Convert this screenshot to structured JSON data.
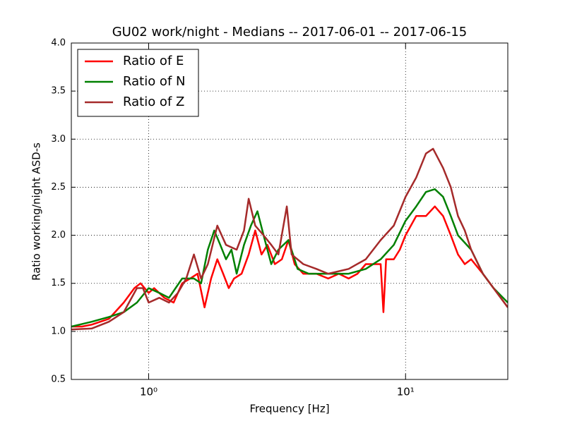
{
  "chart_data": {
    "type": "line",
    "title": "GU02 work/night - Medians -- 2017-06-01 -- 2017-06-15",
    "xlabel": "Frequency [Hz]",
    "ylabel": "Ratio working/night ASD-s",
    "xscale": "log",
    "xlim": [
      0.5,
      25
    ],
    "ylim": [
      0.5,
      4.0
    ],
    "xticks": [
      {
        "value": 1,
        "label": "10⁰"
      },
      {
        "value": 10,
        "label": "10¹"
      }
    ],
    "yticks": [
      0.5,
      {
        "value": 1.0,
        "label": "1.0"
      },
      1.5,
      {
        "value": 2.0,
        "label": "2.0"
      },
      2.5,
      {
        "value": 3.0,
        "label": "3.0"
      },
      3.5,
      {
        "value": 4.0,
        "label": "4.0"
      }
    ],
    "grid": true,
    "legend": "upper left",
    "series": [
      {
        "name": "Ratio of E",
        "color": "#ff0000",
        "x": [
          0.5,
          0.55,
          0.6,
          0.7,
          0.8,
          0.88,
          0.93,
          1.0,
          1.05,
          1.15,
          1.25,
          1.35,
          1.45,
          1.55,
          1.65,
          1.75,
          1.85,
          1.95,
          2.05,
          2.15,
          2.3,
          2.45,
          2.6,
          2.75,
          2.9,
          3.1,
          3.3,
          3.5,
          3.7,
          4.0,
          4.5,
          5,
          5.5,
          6,
          6.5,
          7,
          7.5,
          8,
          8.2,
          8.4,
          9,
          9.5,
          10,
          11,
          12,
          13,
          14,
          15,
          16,
          17,
          18,
          20,
          22,
          25
        ],
        "values": [
          1.05,
          1.05,
          1.07,
          1.13,
          1.3,
          1.45,
          1.5,
          1.4,
          1.45,
          1.35,
          1.3,
          1.5,
          1.55,
          1.6,
          1.25,
          1.55,
          1.75,
          1.6,
          1.45,
          1.55,
          1.6,
          1.8,
          2.05,
          1.8,
          1.9,
          1.7,
          1.75,
          1.95,
          1.7,
          1.6,
          1.6,
          1.55,
          1.6,
          1.55,
          1.6,
          1.7,
          1.7,
          1.7,
          1.2,
          1.75,
          1.75,
          1.85,
          2.0,
          2.2,
          2.2,
          2.3,
          2.2,
          2.0,
          1.8,
          1.7,
          1.75,
          1.6,
          1.45,
          1.25
        ]
      },
      {
        "name": "Ratio of N",
        "color": "#008000",
        "x": [
          0.5,
          0.6,
          0.7,
          0.8,
          0.9,
          1.0,
          1.1,
          1.2,
          1.35,
          1.5,
          1.6,
          1.7,
          1.8,
          1.9,
          2.0,
          2.1,
          2.2,
          2.35,
          2.5,
          2.65,
          2.8,
          3.0,
          3.2,
          3.5,
          3.8,
          4.2,
          5,
          6,
          7,
          8,
          9,
          10,
          11,
          12,
          13,
          14,
          15,
          16,
          18,
          20,
          22,
          25
        ],
        "values": [
          1.05,
          1.1,
          1.15,
          1.2,
          1.3,
          1.45,
          1.4,
          1.35,
          1.55,
          1.55,
          1.5,
          1.85,
          2.05,
          1.9,
          1.75,
          1.85,
          1.6,
          1.9,
          2.1,
          2.25,
          2.0,
          1.7,
          1.85,
          1.95,
          1.65,
          1.6,
          1.6,
          1.6,
          1.65,
          1.75,
          1.9,
          2.15,
          2.3,
          2.45,
          2.48,
          2.4,
          2.2,
          2.0,
          1.85,
          1.6,
          1.45,
          1.3
        ]
      },
      {
        "name": "Ratio of Z",
        "color": "#a52a2a",
        "x": [
          0.5,
          0.6,
          0.7,
          0.8,
          0.9,
          0.95,
          1.0,
          1.1,
          1.2,
          1.3,
          1.4,
          1.5,
          1.6,
          1.7,
          1.85,
          2.0,
          2.2,
          2.35,
          2.45,
          2.6,
          2.8,
          3.0,
          3.2,
          3.45,
          3.6,
          4.0,
          4.5,
          5,
          6,
          7,
          8,
          9,
          10,
          11,
          12,
          12.8,
          14,
          15,
          16,
          17,
          18,
          20,
          22,
          25
        ],
        "values": [
          1.02,
          1.03,
          1.1,
          1.2,
          1.45,
          1.45,
          1.3,
          1.35,
          1.3,
          1.4,
          1.55,
          1.8,
          1.55,
          1.7,
          2.1,
          1.9,
          1.85,
          2.05,
          2.38,
          2.1,
          2.0,
          1.9,
          1.8,
          2.3,
          1.8,
          1.7,
          1.65,
          1.6,
          1.65,
          1.75,
          1.95,
          2.1,
          2.4,
          2.6,
          2.85,
          2.9,
          2.7,
          2.5,
          2.2,
          2.05,
          1.85,
          1.6,
          1.45,
          1.25
        ]
      }
    ]
  }
}
